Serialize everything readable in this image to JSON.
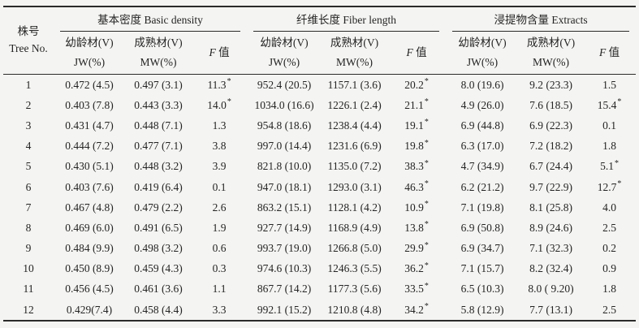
{
  "table": {
    "star_char": "*",
    "tree_header": {
      "line1": "株号",
      "line2": "Tree No."
    },
    "groups": [
      {
        "label": "基本密度 Basic density"
      },
      {
        "label": "纤维长度 Fiber length"
      },
      {
        "label": "浸提物含量 Extracts"
      }
    ],
    "sub": {
      "jw_line1": "幼龄材(V)",
      "jw_line2": "JW(%)",
      "mw_line1": "成熟材(V)",
      "mw_line2": "MW(%)",
      "f_italic": "F",
      "f_text": "值"
    },
    "rows": [
      {
        "no": "1",
        "cells": [
          {
            "t": "0.472 (4.5)"
          },
          {
            "t": "0.497 (3.1)"
          },
          {
            "t": "11.3",
            "s": true
          },
          {
            "t": "952.4 (20.5)"
          },
          {
            "t": "1157.1 (3.6)"
          },
          {
            "t": "20.2",
            "s": true
          },
          {
            "t": "8.0 (19.6)"
          },
          {
            "t": "9.2 (23.3)"
          },
          {
            "t": "1.5"
          }
        ]
      },
      {
        "no": "2",
        "cells": [
          {
            "t": "0.403 (7.8)"
          },
          {
            "t": "0.443 (3.3)"
          },
          {
            "t": "14.0",
            "s": true
          },
          {
            "t": "1034.0 (16.6)"
          },
          {
            "t": "1226.1 (2.4)"
          },
          {
            "t": "21.1",
            "s": true
          },
          {
            "t": "4.9 (26.0)"
          },
          {
            "t": "7.6 (18.5)"
          },
          {
            "t": "15.4",
            "s": true
          }
        ]
      },
      {
        "no": "3",
        "cells": [
          {
            "t": "0.431 (4.7)"
          },
          {
            "t": "0.448 (7.1)"
          },
          {
            "t": "1.3"
          },
          {
            "t": "954.8 (18.6)"
          },
          {
            "t": "1238.4 (4.4)"
          },
          {
            "t": "19.1",
            "s": true
          },
          {
            "t": "6.9 (44.8)"
          },
          {
            "t": "6.9 (22.3)"
          },
          {
            "t": "0.1"
          }
        ]
      },
      {
        "no": "4",
        "cells": [
          {
            "t": "0.444 (7.2)"
          },
          {
            "t": "0.477 (7.1)"
          },
          {
            "t": "3.8"
          },
          {
            "t": "997.0 (14.4)"
          },
          {
            "t": "1231.6 (6.9)"
          },
          {
            "t": "19.8",
            "s": true
          },
          {
            "t": "6.3 (17.0)"
          },
          {
            "t": "7.2 (18.2)"
          },
          {
            "t": "1.8"
          }
        ]
      },
      {
        "no": "5",
        "cells": [
          {
            "t": "0.430 (5.1)"
          },
          {
            "t": "0.448 (3.2)"
          },
          {
            "t": "3.9"
          },
          {
            "t": "821.8 (10.0)"
          },
          {
            "t": "1135.0 (7.2)"
          },
          {
            "t": "38.3",
            "s": true
          },
          {
            "t": "4.7 (34.9)"
          },
          {
            "t": "6.7 (24.4)"
          },
          {
            "t": "5.1",
            "s": true
          }
        ]
      },
      {
        "no": "6",
        "cells": [
          {
            "t": "0.403 (7.6)"
          },
          {
            "t": "0.419 (6.4)"
          },
          {
            "t": "0.1"
          },
          {
            "t": "947.0 (18.1)"
          },
          {
            "t": "1293.0 (3.1)"
          },
          {
            "t": "46.3",
            "s": true
          },
          {
            "t": "6.2 (21.2)"
          },
          {
            "t": "9.7 (22.9)"
          },
          {
            "t": "12.7",
            "s": true
          }
        ]
      },
      {
        "no": "7",
        "cells": [
          {
            "t": "0.467 (4.8)"
          },
          {
            "t": "0.479 (2.2)"
          },
          {
            "t": "2.6"
          },
          {
            "t": "863.2 (15.1)"
          },
          {
            "t": "1128.1 (4.2)"
          },
          {
            "t": "10.9",
            "s": true
          },
          {
            "t": "7.1 (19.8)"
          },
          {
            "t": "8.1 (25.8)"
          },
          {
            "t": "4.0"
          }
        ]
      },
      {
        "no": "8",
        "cells": [
          {
            "t": "0.469 (6.0)"
          },
          {
            "t": "0.491 (6.5)"
          },
          {
            "t": "1.9"
          },
          {
            "t": "927.7 (14.9)"
          },
          {
            "t": "1168.9 (4.9)"
          },
          {
            "t": "13.8",
            "s": true
          },
          {
            "t": "6.9 (50.8)"
          },
          {
            "t": "8.9 (24.6)"
          },
          {
            "t": "2.5"
          }
        ]
      },
      {
        "no": "9",
        "cells": [
          {
            "t": "0.484 (9.9)"
          },
          {
            "t": "0.498 (3.2)"
          },
          {
            "t": "0.6"
          },
          {
            "t": "993.7 (19.0)"
          },
          {
            "t": "1266.8 (5.0)"
          },
          {
            "t": "29.9",
            "s": true
          },
          {
            "t": "6.9 (34.7)"
          },
          {
            "t": "7.1 (32.3)"
          },
          {
            "t": "0.2"
          }
        ]
      },
      {
        "no": "10",
        "cells": [
          {
            "t": "0.450 (8.9)"
          },
          {
            "t": "0.459 (4.3)"
          },
          {
            "t": "0.3"
          },
          {
            "t": "974.6 (10.3)"
          },
          {
            "t": "1246.3 (5.5)"
          },
          {
            "t": "36.2",
            "s": true
          },
          {
            "t": "7.1 (15.7)"
          },
          {
            "t": "8.2 (32.4)"
          },
          {
            "t": "0.9"
          }
        ]
      },
      {
        "no": "11",
        "cells": [
          {
            "t": "0.456 (4.5)"
          },
          {
            "t": "0.461 (3.6)"
          },
          {
            "t": "1.1"
          },
          {
            "t": "867.7 (14.2)"
          },
          {
            "t": "1177.3 (5.6)"
          },
          {
            "t": "33.5",
            "s": true
          },
          {
            "t": "6.5 (10.3)"
          },
          {
            "t": "8.0 ( 9.20)"
          },
          {
            "t": "1.8"
          }
        ]
      },
      {
        "no": "12",
        "cells": [
          {
            "t": "0.429(7.4)"
          },
          {
            "t": "0.458 (4.4)"
          },
          {
            "t": "3.3"
          },
          {
            "t": "992.1 (15.2)"
          },
          {
            "t": "1210.8 (4.8)"
          },
          {
            "t": "34.2",
            "s": true
          },
          {
            "t": "5.8 (12.9)"
          },
          {
            "t": "7.7 (13.1)"
          },
          {
            "t": "2.5"
          }
        ]
      }
    ]
  }
}
